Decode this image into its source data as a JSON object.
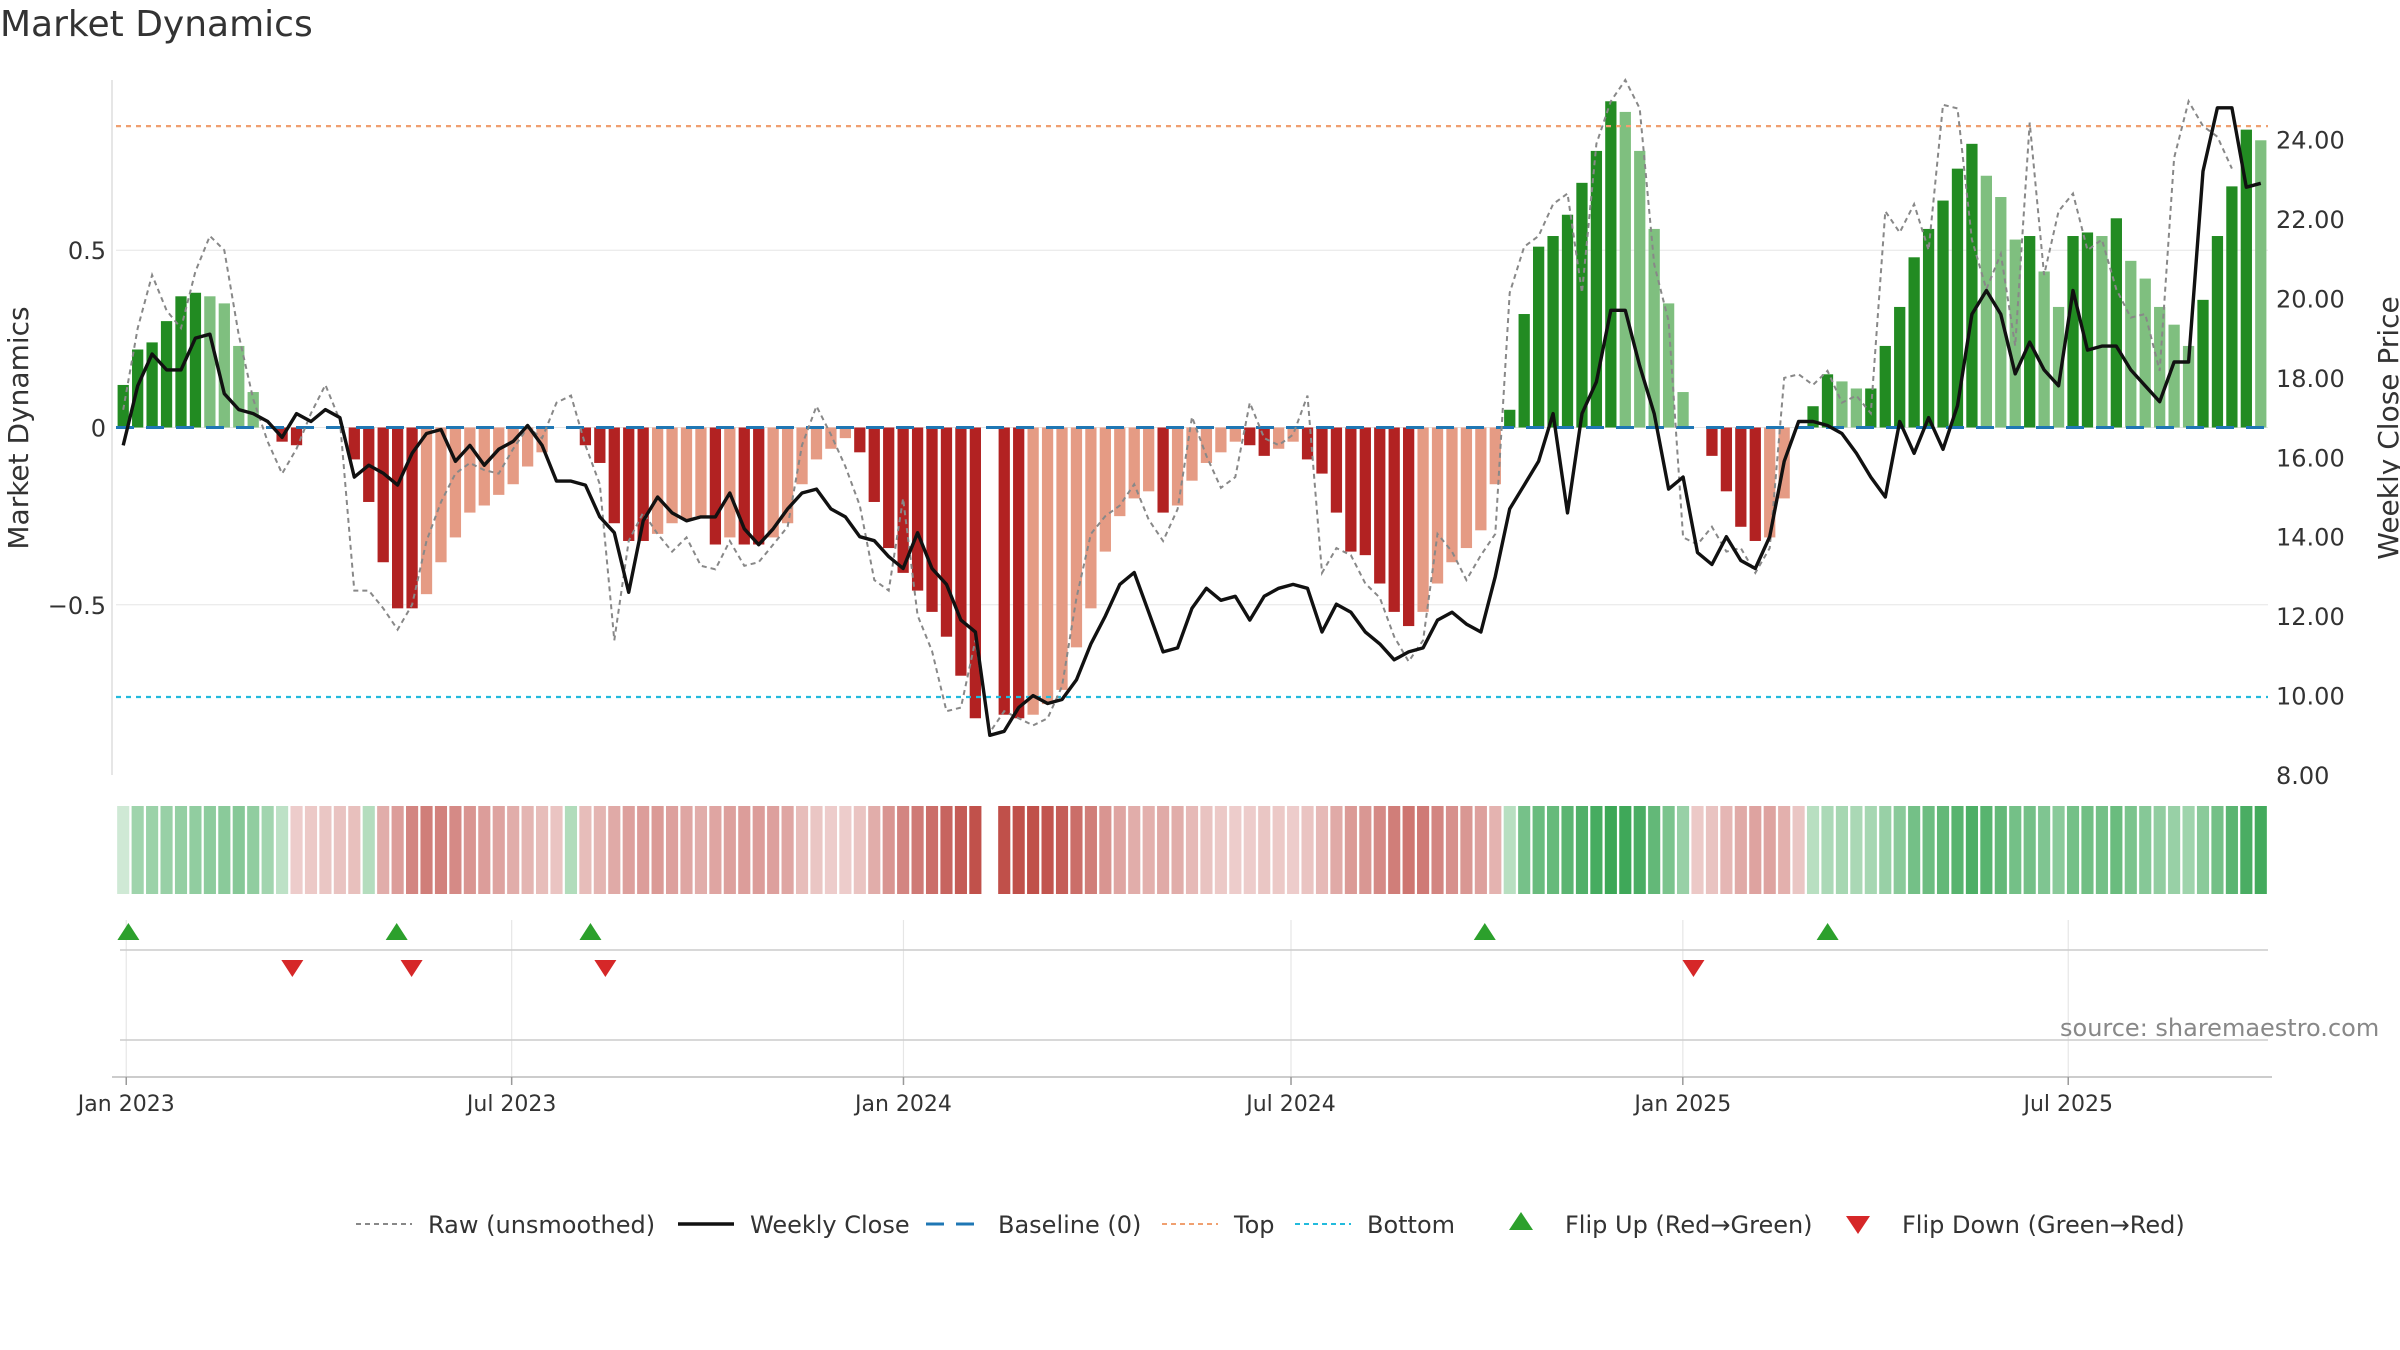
{
  "chart_data": {
    "type": "bar",
    "title": "Market Dynamics",
    "ylabel": "Market Dynamics",
    "y2label": "Weekly Close Price",
    "ylim": [
      -0.98,
      0.98
    ],
    "y2lim": [
      8.0,
      25.5
    ],
    "y_ticks": [
      0.5,
      0,
      -0.5
    ],
    "y_tick_labels": [
      "0.5",
      "0",
      "−0.5"
    ],
    "y2_ticks": [
      24,
      22,
      20,
      18,
      16,
      14,
      12,
      10,
      8
    ],
    "y2_tick_labels": [
      "24.00",
      "22.00",
      "20.00",
      "18.00",
      "16.00",
      "14.00",
      "12.00",
      "10.00",
      "8.00"
    ],
    "top_level": 0.85,
    "bottom_level": -0.76,
    "x_start": "2022-12-30",
    "x_end": "2025-09-30",
    "x_ticks": [
      "2023-01-01",
      "2023-07-01",
      "2024-01-01",
      "2024-07-01",
      "2025-01-01",
      "2025-07-01"
    ],
    "x_tick_labels": [
      "Jan 2023",
      "Jul 2023",
      "Jan 2024",
      "Jul 2024",
      "Jan 2025",
      "Jul 2025"
    ],
    "grid": true,
    "legend_position": "bottom",
    "series": [
      {
        "name": "Market Dynamics",
        "kind": "bar",
        "values": [
          0.12,
          0.22,
          0.24,
          0.3,
          0.37,
          0.38,
          0.37,
          0.35,
          0.23,
          0.1,
          0.0,
          -0.04,
          -0.05,
          0.0,
          0.0,
          0.0,
          -0.09,
          -0.21,
          -0.38,
          -0.51,
          -0.51,
          -0.47,
          -0.38,
          -0.31,
          -0.24,
          -0.22,
          -0.19,
          -0.16,
          -0.11,
          -0.07,
          0.0,
          0.0,
          -0.05,
          -0.1,
          -0.27,
          -0.32,
          -0.32,
          -0.3,
          -0.27,
          -0.26,
          -0.25,
          -0.33,
          -0.31,
          -0.33,
          -0.33,
          -0.31,
          -0.27,
          -0.16,
          -0.09,
          -0.06,
          -0.03,
          -0.07,
          -0.21,
          -0.34,
          -0.41,
          -0.46,
          -0.52,
          -0.59,
          -0.7,
          -0.82,
          null,
          -0.81,
          -0.82,
          -0.81,
          -0.78,
          -0.74,
          -0.62,
          -0.51,
          -0.35,
          -0.25,
          -0.2,
          -0.18,
          -0.24,
          -0.22,
          -0.15,
          -0.1,
          -0.07,
          -0.04,
          -0.05,
          -0.08,
          -0.06,
          -0.04,
          -0.09,
          -0.13,
          -0.24,
          -0.35,
          -0.36,
          -0.44,
          -0.52,
          -0.56,
          -0.52,
          -0.44,
          -0.38,
          -0.34,
          -0.29,
          -0.16,
          0.05,
          0.32,
          0.51,
          0.54,
          0.6,
          0.69,
          0.78,
          0.92,
          0.89,
          0.78,
          0.56,
          0.35,
          0.1,
          0.0,
          -0.08,
          -0.18,
          -0.28,
          -0.32,
          -0.31,
          -0.2,
          0.0,
          0.06,
          0.15,
          0.13,
          0.11,
          0.11,
          0.23,
          0.34,
          0.48,
          0.56,
          0.64,
          0.73,
          0.8,
          0.71,
          0.65,
          0.53,
          0.54,
          0.44,
          0.34,
          0.54,
          0.55,
          0.54,
          0.59,
          0.47,
          0.42,
          0.34,
          0.29,
          0.23,
          0.36,
          0.54,
          0.68,
          0.84,
          0.81
        ]
      },
      {
        "name": "Raw (unsmoothed)",
        "kind": "line",
        "values": [
          0.05,
          0.28,
          0.43,
          0.33,
          0.28,
          0.44,
          0.54,
          0.5,
          0.26,
          0.08,
          -0.04,
          -0.13,
          -0.06,
          0.04,
          0.12,
          0.02,
          -0.46,
          -0.46,
          -0.51,
          -0.57,
          -0.5,
          -0.32,
          -0.21,
          -0.13,
          -0.1,
          -0.12,
          -0.13,
          -0.06,
          0.0,
          -0.03,
          0.07,
          0.09,
          -0.05,
          -0.16,
          -0.6,
          -0.32,
          -0.24,
          -0.3,
          -0.35,
          -0.31,
          -0.39,
          -0.4,
          -0.32,
          -0.39,
          -0.38,
          -0.33,
          -0.28,
          -0.05,
          0.06,
          -0.02,
          -0.11,
          -0.22,
          -0.43,
          -0.46,
          -0.2,
          -0.53,
          -0.63,
          -0.8,
          -0.79,
          -0.6,
          -0.86,
          -0.8,
          -0.82,
          -0.84,
          -0.82,
          -0.73,
          -0.48,
          -0.3,
          -0.25,
          -0.22,
          -0.16,
          -0.26,
          -0.32,
          -0.23,
          0.03,
          -0.08,
          -0.17,
          -0.14,
          0.07,
          -0.03,
          -0.05,
          -0.02,
          0.09,
          -0.41,
          -0.34,
          -0.36,
          -0.44,
          -0.48,
          -0.59,
          -0.66,
          -0.6,
          -0.3,
          -0.35,
          -0.43,
          -0.36,
          -0.3,
          0.38,
          0.51,
          0.54,
          0.63,
          0.66,
          0.38,
          0.8,
          0.92,
          0.98,
          0.9,
          0.46,
          0.3,
          -0.31,
          -0.33,
          -0.28,
          -0.35,
          -0.34,
          -0.41,
          -0.34,
          0.14,
          0.15,
          0.12,
          0.16,
          0.07,
          0.09,
          0.04,
          0.61,
          0.55,
          0.63,
          0.5,
          0.91,
          0.9,
          0.53,
          0.39,
          0.49,
          0.23,
          0.86,
          0.43,
          0.61,
          0.66,
          0.5,
          0.53,
          0.39,
          0.31,
          0.32,
          0.16,
          0.76,
          0.92,
          0.85,
          0.82,
          0.73
        ]
      },
      {
        "name": "Weekly Close",
        "kind": "line",
        "axis": "right",
        "values": [
          16.3,
          17.8,
          18.6,
          18.2,
          18.2,
          19.0,
          19.1,
          17.6,
          17.2,
          17.1,
          16.9,
          16.5,
          17.1,
          16.9,
          17.2,
          17.0,
          15.5,
          15.8,
          15.6,
          15.3,
          16.1,
          16.6,
          16.7,
          15.9,
          16.3,
          15.8,
          16.2,
          16.4,
          16.8,
          16.3,
          15.4,
          15.4,
          15.3,
          14.5,
          14.1,
          12.6,
          14.4,
          15.0,
          14.6,
          14.4,
          14.5,
          14.5,
          15.1,
          14.2,
          13.8,
          14.2,
          14.7,
          15.1,
          15.2,
          14.7,
          14.5,
          14.0,
          13.9,
          13.5,
          13.2,
          14.1,
          13.2,
          12.8,
          11.9,
          11.6,
          9.0,
          9.1,
          9.7,
          10.0,
          9.8,
          9.9,
          10.4,
          11.3,
          12.0,
          12.8,
          13.1,
          12.1,
          11.1,
          11.2,
          12.2,
          12.7,
          12.4,
          12.5,
          11.9,
          12.5,
          12.7,
          12.8,
          12.7,
          11.6,
          12.3,
          12.1,
          11.6,
          11.3,
          10.9,
          11.1,
          11.2,
          11.9,
          12.1,
          11.8,
          11.6,
          13.0,
          14.7,
          15.3,
          15.9,
          17.1,
          14.6,
          17.1,
          17.9,
          19.7,
          19.7,
          18.3,
          17.1,
          15.2,
          15.5,
          13.6,
          13.3,
          14.0,
          13.4,
          13.2,
          14.0,
          15.9,
          16.9,
          16.9,
          16.8,
          16.6,
          16.1,
          15.5,
          15.0,
          16.9,
          16.1,
          17.0,
          16.2,
          17.3,
          19.6,
          20.2,
          19.6,
          18.1,
          18.9,
          18.2,
          17.8,
          20.2,
          18.7,
          18.8,
          18.8,
          18.2,
          17.8,
          17.4,
          18.4,
          18.4,
          23.2,
          24.8,
          24.8,
          22.8,
          22.9
        ]
      }
    ],
    "regime_strip": {
      "values": [
        0.05,
        0.32,
        0.34,
        0.36,
        0.38,
        0.4,
        0.42,
        0.44,
        0.46,
        0.4,
        0.3,
        0.15,
        -0.1,
        -0.12,
        -0.14,
        -0.16,
        -0.18,
        0.2,
        -0.3,
        -0.4,
        -0.55,
        -0.6,
        -0.58,
        -0.52,
        -0.45,
        -0.4,
        -0.36,
        -0.3,
        -0.25,
        -0.2,
        -0.15,
        0.22,
        -0.2,
        -0.25,
        -0.32,
        -0.38,
        -0.4,
        -0.42,
        -0.38,
        -0.34,
        -0.3,
        -0.35,
        -0.38,
        -0.4,
        -0.4,
        -0.38,
        -0.34,
        -0.2,
        -0.14,
        -0.1,
        -0.1,
        -0.15,
        -0.3,
        -0.45,
        -0.55,
        -0.62,
        -0.7,
        -0.76,
        -0.82,
        -0.88,
        null,
        -0.9,
        -0.92,
        -0.9,
        -0.86,
        -0.8,
        -0.7,
        -0.6,
        -0.45,
        -0.35,
        -0.3,
        -0.28,
        -0.32,
        -0.3,
        -0.22,
        -0.16,
        -0.12,
        -0.1,
        -0.1,
        -0.14,
        -0.12,
        -0.1,
        -0.15,
        -0.22,
        -0.32,
        -0.42,
        -0.44,
        -0.52,
        -0.6,
        -0.65,
        -0.62,
        -0.55,
        -0.48,
        -0.44,
        -0.38,
        -0.26,
        0.18,
        0.55,
        0.62,
        0.64,
        0.7,
        0.76,
        0.82,
        0.88,
        0.86,
        0.8,
        0.66,
        0.52,
        0.36,
        -0.12,
        -0.16,
        -0.24,
        -0.32,
        -0.36,
        -0.36,
        -0.28,
        -0.14,
        0.18,
        0.25,
        0.28,
        0.26,
        0.28,
        0.36,
        0.44,
        0.56,
        0.6,
        0.66,
        0.72,
        0.78,
        0.72,
        0.66,
        0.56,
        0.56,
        0.5,
        0.44,
        0.56,
        0.58,
        0.56,
        0.62,
        0.52,
        0.46,
        0.4,
        0.36,
        0.32,
        0.44,
        0.56,
        0.7,
        0.8,
        0.84
      ]
    },
    "flip_up_dates": [
      "2023-01-02",
      "2023-05-08",
      "2023-08-07",
      "2024-09-30",
      "2025-03-10"
    ],
    "flip_down_dates": [
      "2023-03-20",
      "2023-05-15",
      "2023-08-14",
      "2025-01-06"
    ],
    "legend": [
      {
        "label": "Raw (unsmoothed)",
        "style": "dotted",
        "color": "#888888"
      },
      {
        "label": "Weekly Close",
        "style": "solid",
        "color": "#111111"
      },
      {
        "label": "Baseline (0)",
        "style": "dashed",
        "color": "#1f77b4"
      },
      {
        "label": "Top",
        "style": "dotted",
        "color": "#f0a070"
      },
      {
        "label": "Bottom",
        "style": "dotted",
        "color": "#22bbdd"
      },
      {
        "label": "Flip Up (Red→Green)",
        "style": "triangle-up",
        "color": "#2ca02c"
      },
      {
        "label": "Flip Down (Green→Red)",
        "style": "triangle-down",
        "color": "#d62728"
      }
    ],
    "colors": {
      "strong_green": "#228b22",
      "light_green": "#7fbf7f",
      "strong_red": "#b22222",
      "light_red": "#e59b84",
      "baseline": "#1f77b4",
      "top": "#f0a070",
      "bottom": "#22bbdd",
      "raw": "#888888",
      "close": "#111111",
      "flip_up": "#2ca02c",
      "flip_down": "#d62728"
    }
  },
  "source": "source: sharemaestro.com"
}
